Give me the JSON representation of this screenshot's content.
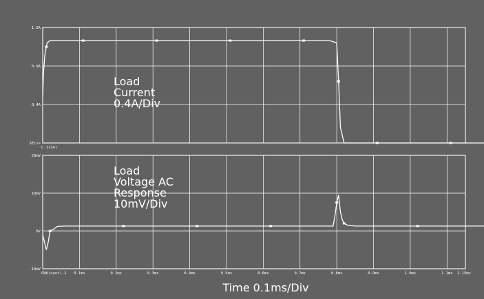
{
  "chart_data": [
    {
      "type": "line",
      "title": "",
      "ylabel": "",
      "series_label": "I(I4)",
      "ylim": [
        0,
        1.5
      ],
      "y_ticks": [
        "1.5A",
        "0.9A",
        "0.4A",
        "SEL>>"
      ],
      "annotation": [
        "Load",
        "Current",
        "0.4A/Div"
      ],
      "x_ms": [
        0,
        0.002,
        0.006,
        0.012,
        0.02,
        0.04,
        0.2,
        0.4,
        0.6,
        0.78,
        0.8,
        0.805,
        0.81,
        0.82,
        0.9,
        1.0,
        1.2,
        1.38
      ],
      "values": [
        0.6,
        0.9,
        1.15,
        1.3,
        1.33,
        1.33,
        1.33,
        1.33,
        1.33,
        1.33,
        1.3,
        0.8,
        0.2,
        0.0,
        0.0,
        0.0,
        0.0,
        0.0
      ],
      "marker_x_ms": [
        0.01,
        0.11,
        0.31,
        0.51,
        0.71,
        0.805,
        0.91,
        1.11,
        1.31
      ],
      "color": "#ffffff"
    },
    {
      "type": "line",
      "title": "",
      "xlabel": "Time 0.1ms/Div",
      "ylabel": "",
      "series_label": "V(vout)-2",
      "ylim": [
        -10,
        20
      ],
      "y_ticks": [
        "20mV",
        "10mV",
        "0V",
        "-10mV"
      ],
      "annotation": [
        "Load",
        "Voltage AC",
        "Response",
        "10mV/Div"
      ],
      "x_ticks": [
        "0s",
        "0.1ms",
        "0.2ms",
        "0.3ms",
        "0.4ms",
        "0.5ms",
        "0.6ms",
        "0.7ms",
        "0.8ms",
        "0.9ms",
        "1.0ms",
        "1.1ms",
        "1.15ms"
      ],
      "x_ms": [
        0,
        0.005,
        0.01,
        0.015,
        0.02,
        0.03,
        0.04,
        0.06,
        0.08,
        0.1,
        0.3,
        0.5,
        0.7,
        0.79,
        0.795,
        0.8,
        0.805,
        0.81,
        0.815,
        0.82,
        0.83,
        0.85,
        0.9,
        1.0,
        1.2,
        1.4
      ],
      "values": [
        -1,
        -3,
        -5,
        -3,
        0,
        0.5,
        1.2,
        1.3,
        1.3,
        1.3,
        1.3,
        1.3,
        1.3,
        1.3,
        4,
        7.5,
        9.5,
        5,
        3,
        2,
        1.5,
        1.3,
        1.3,
        1.3,
        1.3,
        1.3
      ],
      "marker_x_ms": [
        0.02,
        0.22,
        0.42,
        0.62,
        0.8,
        0.82,
        1.02,
        1.22
      ],
      "color": "#ffffff"
    }
  ]
}
